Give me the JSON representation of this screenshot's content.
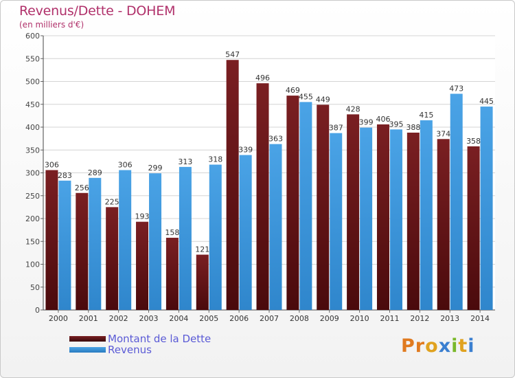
{
  "title": "Revenus/Dette - DOHEM",
  "subtitle": "(en milliers d'€)",
  "colors": {
    "dette": "#7a1f22",
    "revenus": "#4aa3e6",
    "title": "#b0306a",
    "legend_text": "#5a5ad6"
  },
  "legend": {
    "dette_label": "Montant de la Dette",
    "revenus_label": "Revenus"
  },
  "logo": {
    "text": "Proxiti"
  },
  "chart_data": {
    "type": "bar",
    "categories": [
      "2000",
      "2001",
      "2002",
      "2003",
      "2004",
      "2005",
      "2006",
      "2007",
      "2008",
      "2009",
      "2010",
      "2011",
      "2012",
      "2013",
      "2014"
    ],
    "series": [
      {
        "name": "Montant de la Dette",
        "values": [
          306,
          256,
          225,
          193,
          158,
          121,
          547,
          496,
          469,
          449,
          428,
          406,
          388,
          374,
          358
        ]
      },
      {
        "name": "Revenus",
        "values": [
          283,
          289,
          306,
          299,
          313,
          318,
          339,
          363,
          455,
          387,
          399,
          395,
          415,
          473,
          445
        ]
      }
    ],
    "ylim": [
      0,
      600
    ],
    "yticks": [
      0,
      50,
      100,
      150,
      200,
      250,
      300,
      350,
      400,
      450,
      500,
      550,
      600
    ],
    "grid": true,
    "legend_position": "bottom-left"
  }
}
